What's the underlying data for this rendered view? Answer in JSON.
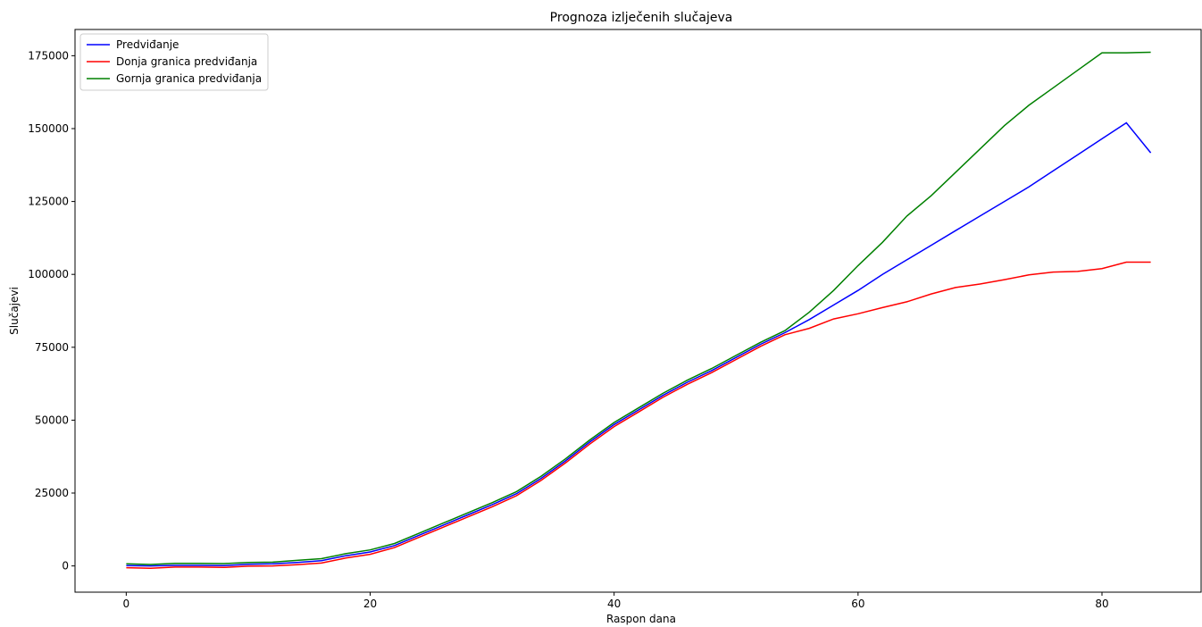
{
  "chart_data": {
    "type": "line",
    "title": "Prognoza izlječenih slučajeva",
    "xlabel": "Raspon dana",
    "ylabel": "Slučajevi",
    "xlim": [
      -4.2,
      88.2
    ],
    "ylim": [
      -9000,
      184000
    ],
    "xticks": [
      0,
      20,
      40,
      60,
      80
    ],
    "yticks": [
      0,
      25000,
      50000,
      75000,
      100000,
      125000,
      150000,
      175000
    ],
    "grid": false,
    "legend_position": "top-left",
    "series": [
      {
        "name": "Predviđanje",
        "color": "#0000ff",
        "x": [
          0,
          2,
          4,
          6,
          8,
          10,
          12,
          14,
          16,
          18,
          20,
          22,
          24,
          26,
          28,
          30,
          32,
          34,
          36,
          38,
          40,
          42,
          44,
          46,
          48,
          50,
          52,
          54,
          56,
          58,
          60,
          62,
          64,
          66,
          68,
          70,
          72,
          74,
          76,
          78,
          80,
          82,
          84
        ],
        "y": [
          100,
          0,
          200,
          200,
          100,
          600,
          700,
          1200,
          1800,
          3500,
          4800,
          7000,
          10500,
          14000,
          17500,
          21000,
          24800,
          30000,
          36000,
          42500,
          48500,
          53500,
          58500,
          63000,
          67000,
          71500,
          76000,
          80000,
          84500,
          89500,
          94500,
          100000,
          105000,
          110000,
          115000,
          120000,
          125000,
          130000,
          135500,
          141000,
          146500,
          152000,
          141700
        ]
      },
      {
        "name": "Donja granica predviđanja",
        "color": "#ff0000",
        "x": [
          0,
          2,
          4,
          6,
          8,
          10,
          12,
          14,
          16,
          18,
          20,
          22,
          24,
          26,
          28,
          30,
          32,
          34,
          36,
          38,
          40,
          42,
          44,
          46,
          48,
          50,
          52,
          54,
          56,
          58,
          60,
          62,
          64,
          66,
          68,
          70,
          72,
          74,
          76,
          78,
          80,
          82,
          84
        ],
        "y": [
          -600,
          -800,
          -400,
          -400,
          -500,
          -100,
          0,
          400,
          1000,
          2700,
          4000,
          6300,
          9800,
          13300,
          16800,
          20300,
          24100,
          29300,
          35300,
          41800,
          47800,
          52800,
          57800,
          62300,
          66300,
          70800,
          75300,
          79300,
          81500,
          84700,
          86500,
          88600,
          90600,
          93300,
          95500,
          96700,
          98200,
          99800,
          100800,
          101000,
          102000,
          104200,
          104200
        ]
      },
      {
        "name": "Gornja granica predviđanja",
        "color": "#008000",
        "x": [
          0,
          2,
          4,
          6,
          8,
          10,
          12,
          14,
          16,
          18,
          20,
          22,
          24,
          26,
          28,
          30,
          32,
          34,
          36,
          38,
          40,
          42,
          44,
          46,
          48,
          50,
          52,
          54,
          56,
          58,
          60,
          62,
          64,
          66,
          68,
          70,
          72,
          74,
          76,
          78,
          80,
          82,
          84
        ],
        "y": [
          700,
          500,
          900,
          900,
          800,
          1200,
          1300,
          1900,
          2500,
          4200,
          5500,
          7700,
          11200,
          14700,
          18200,
          21700,
          25500,
          30700,
          36700,
          43200,
          49200,
          54200,
          59200,
          63700,
          67700,
          72200,
          76700,
          80700,
          87000,
          94500,
          103000,
          111000,
          120000,
          127000,
          135000,
          143000,
          151000,
          158000,
          164000,
          170000,
          176000,
          176000,
          176200
        ]
      }
    ]
  }
}
